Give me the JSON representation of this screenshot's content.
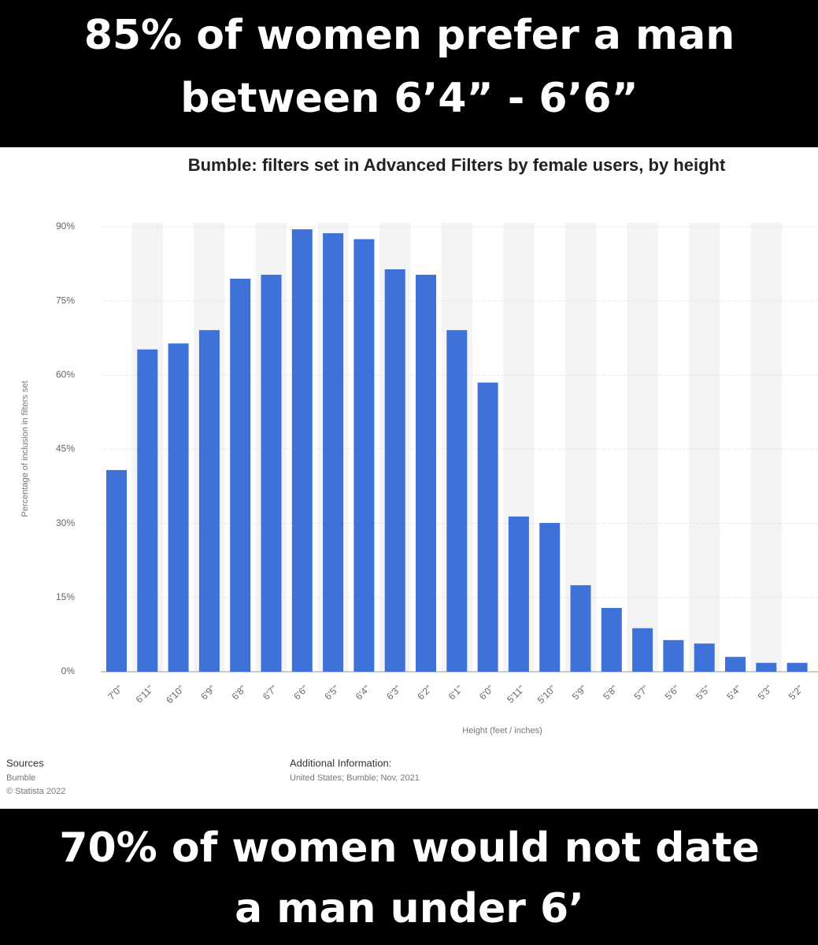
{
  "top_caption": [
    "85% of women prefer a man",
    "between 6’4”  -  6’6”"
  ],
  "bottom_caption": [
    "70% of women would not date",
    "a man under 6’"
  ],
  "chart_data": {
    "type": "bar",
    "title": "Bumble: filters set in Advanced Filters by female users, by height",
    "y_label": "Percentage of inclusion in filters set",
    "x_label": "Height (feet / inches)",
    "categories": [
      "7'0\"",
      "6'11\"",
      "6'10\"",
      "6'9\"",
      "6'8\"",
      "6'7\"",
      "6'6\"",
      "6'5\"",
      "6'4\"",
      "6'3\"",
      "6'2\"",
      "6'1\"",
      "6'0\"",
      "5'11\"",
      "5'10\"",
      "5'9\"",
      "5'8\"",
      "5'7\"",
      "5'6\"",
      "5'5\"",
      "5'4\"",
      "5'3\"",
      "5'2\""
    ],
    "values": [
      40.8,
      65.2,
      66.4,
      69.1,
      79.5,
      80.3,
      89.5,
      88.7,
      87.5,
      81.4,
      80.3,
      69.1,
      58.5,
      31.4,
      30.1,
      17.5,
      12.9,
      8.8,
      6.4,
      5.7,
      3.0,
      1.8,
      1.8
    ],
    "color": "#3f72d8",
    "ylim": [
      0,
      90
    ],
    "yticks": [
      {
        "value": 0,
        "label": "0%"
      },
      {
        "value": 15,
        "label": "15%"
      },
      {
        "value": 30,
        "label": "30%"
      },
      {
        "value": 45,
        "label": "45%"
      },
      {
        "value": 60,
        "label": "60%"
      },
      {
        "value": 75,
        "label": "75%"
      },
      {
        "value": 90,
        "label": "90%"
      }
    ],
    "grid": true
  },
  "footer": {
    "sources_title": "Sources",
    "sources": [
      "Bumble",
      "© Statista 2022"
    ],
    "info_title": "Additional Information:",
    "info": "United States; Bumble; Nov, 2021"
  }
}
